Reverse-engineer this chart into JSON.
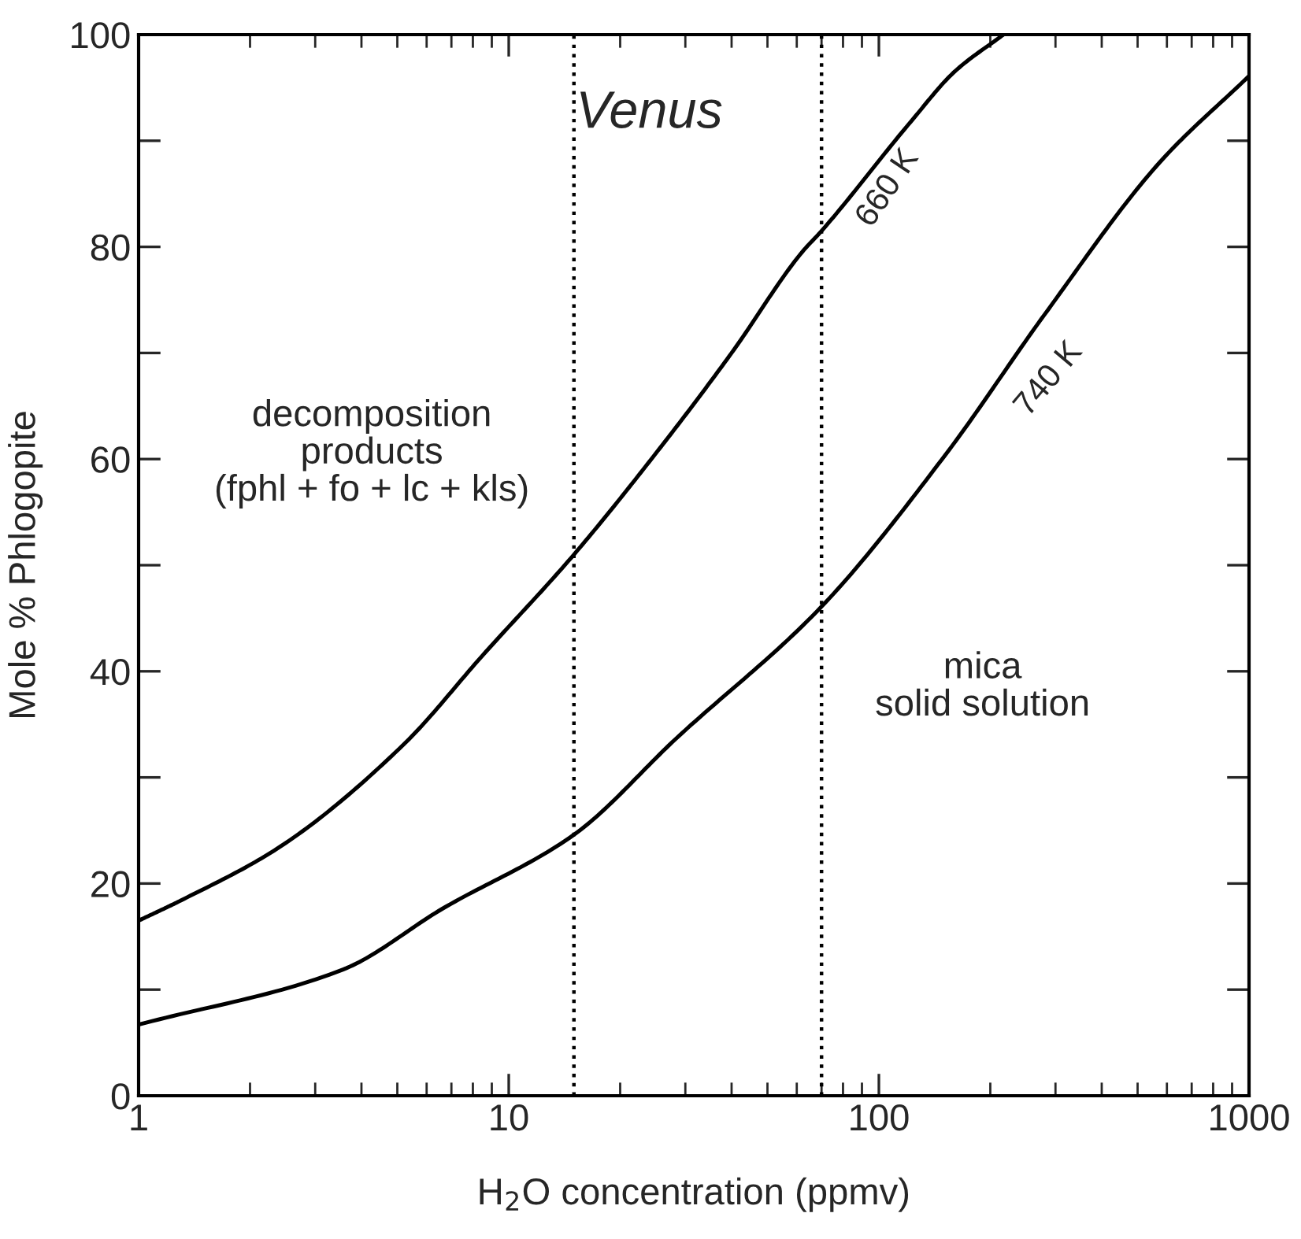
{
  "chart_data": {
    "type": "line",
    "xlabel": "H$_{2}$O concentration (ppmv)",
    "ylabel": "Mole % Phlogopite",
    "log": "x",
    "xlim": [
      1,
      1000
    ],
    "xticks": [
      1,
      10,
      100,
      1000
    ],
    "ylim": [
      0,
      100
    ],
    "yticks": [
      0,
      {
        "value": 10,
        "label": null
      },
      20,
      {
        "value": 30,
        "label": null
      },
      40,
      {
        "value": 50,
        "label": null
      },
      60,
      {
        "value": 70,
        "label": null
      },
      80,
      {
        "value": 90,
        "label": null
      },
      100
    ],
    "grid": false,
    "legend": false,
    "marker": "none",
    "line_style": "solid",
    "series": [
      {
        "color": "#000000",
        "x": [
          1,
          1.3,
          2.37,
          5.2,
          8.5,
          15,
          25.7,
          40,
          62,
          70,
          122,
          160,
          217
        ],
        "values": [
          16.5,
          18.4,
          23.3,
          33.1,
          41.5,
          51,
          61.1,
          70,
          79.5,
          81.5,
          91.8,
          96.5,
          100
        ]
      },
      {
        "color": "#000000",
        "x": [
          1,
          3.57,
          6.6,
          15,
          28.4,
          70,
          152,
          280,
          575,
          1000
        ],
        "values": [
          6.7,
          11.9,
          17.6,
          24.6,
          33.7,
          46.1,
          60.5,
          73.6,
          88,
          96.1
        ]
      }
    ],
    "ref_lines": [
      {
        "axis": "x",
        "value": 15,
        "color": "#000000",
        "line_style": "dotted"
      },
      {
        "axis": "x",
        "value": 70,
        "color": "#000000",
        "line_style": "dotted"
      }
    ],
    "annotations": [
      "660 K",
      "740 K",
      "Venus",
      "decomposition\nproducts\n(fphl + fo + lc + kls)",
      "mica\nsolid solution"
    ]
  }
}
